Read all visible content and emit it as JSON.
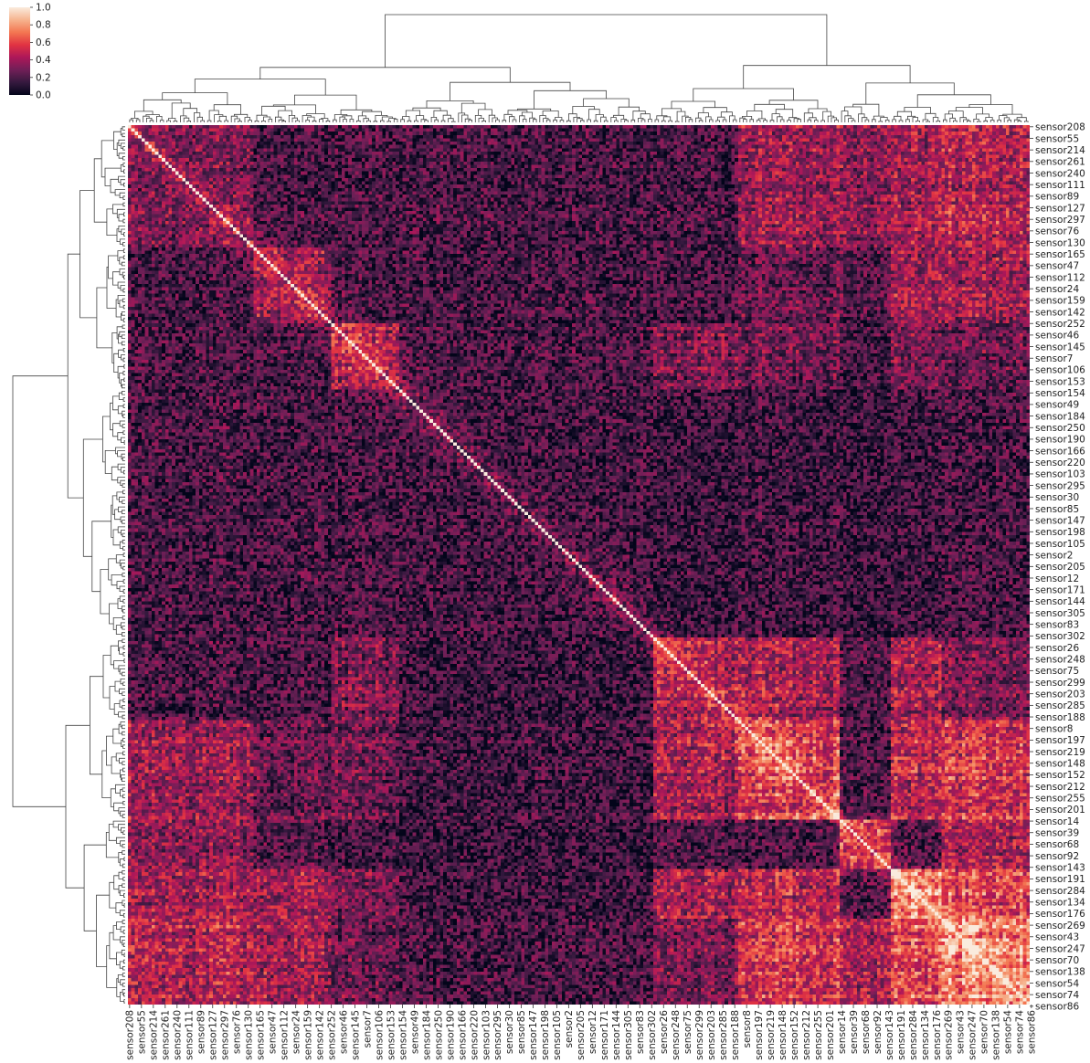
{
  "chart_data": {
    "type": "heatmap",
    "subtype": "clustermap",
    "n_rows": 266,
    "n_cols": 266,
    "row_tick_labels": [
      "sensor208",
      "sensor55",
      "sensor214",
      "sensor261",
      "sensor240",
      "sensor111",
      "sensor89",
      "sensor127",
      "sensor297",
      "sensor76",
      "sensor130",
      "sensor165",
      "sensor47",
      "sensor112",
      "sensor24",
      "sensor159",
      "sensor142",
      "sensor252",
      "sensor46",
      "sensor145",
      "sensor7",
      "sensor106",
      "sensor153",
      "sensor154",
      "sensor49",
      "sensor184",
      "sensor250",
      "sensor190",
      "sensor166",
      "sensor220",
      "sensor103",
      "sensor295",
      "sensor30",
      "sensor85",
      "sensor147",
      "sensor198",
      "sensor105",
      "sensor2",
      "sensor205",
      "sensor12",
      "sensor171",
      "sensor144",
      "sensor305",
      "sensor83",
      "sensor302",
      "sensor26",
      "sensor248",
      "sensor75",
      "sensor299",
      "sensor203",
      "sensor285",
      "sensor188",
      "sensor8",
      "sensor197",
      "sensor219",
      "sensor148",
      "sensor152",
      "sensor212",
      "sensor255",
      "sensor201",
      "sensor14",
      "sensor39",
      "sensor68",
      "sensor92",
      "sensor143",
      "sensor191",
      "sensor284",
      "sensor134",
      "sensor176",
      "sensor269",
      "sensor43",
      "sensor247",
      "sensor70",
      "sensor138",
      "sensor54",
      "sensor74",
      "sensor86"
    ],
    "col_tick_labels": [
      "sensor208",
      "sensor55",
      "sensor214",
      "sensor261",
      "sensor240",
      "sensor111",
      "sensor89",
      "sensor127",
      "sensor297",
      "sensor76",
      "sensor130",
      "sensor165",
      "sensor47",
      "sensor112",
      "sensor24",
      "sensor159",
      "sensor142",
      "sensor252",
      "sensor46",
      "sensor145",
      "sensor7",
      "sensor106",
      "sensor153",
      "sensor154",
      "sensor49",
      "sensor184",
      "sensor250",
      "sensor190",
      "sensor166",
      "sensor220",
      "sensor103",
      "sensor295",
      "sensor30",
      "sensor85",
      "sensor147",
      "sensor198",
      "sensor105",
      "sensor2",
      "sensor205",
      "sensor12",
      "sensor171",
      "sensor144",
      "sensor305",
      "sensor83",
      "sensor302",
      "sensor26",
      "sensor248",
      "sensor75",
      "sensor299",
      "sensor203",
      "sensor285",
      "sensor188",
      "sensor8",
      "sensor197",
      "sensor219",
      "sensor148",
      "sensor152",
      "sensor212",
      "sensor255",
      "sensor201",
      "sensor14",
      "sensor39",
      "sensor68",
      "sensor92",
      "sensor143",
      "sensor191",
      "sensor284",
      "sensor134",
      "sensor176",
      "sensor269",
      "sensor43",
      "sensor247",
      "sensor70",
      "sensor138",
      "sensor54",
      "sensor74",
      "sensor86"
    ],
    "tick_every_n_cells": 3.5,
    "clusters": [
      {
        "range": [
          0,
          37
        ],
        "within": 0.3
      },
      {
        "range": [
          37,
          60
        ],
        "within": 0.38
      },
      {
        "range": [
          60,
          80
        ],
        "within": 0.42
      },
      {
        "range": [
          80,
          155
        ],
        "within": 0.16
      },
      {
        "range": [
          155,
          180
        ],
        "within": 0.42
      },
      {
        "range": [
          180,
          210
        ],
        "within": 0.58
      },
      {
        "range": [
          210,
          225
        ],
        "within": 0.55
      },
      {
        "range": [
          225,
          240
        ],
        "within": 0.78
      },
      {
        "range": [
          240,
          266
        ],
        "within": 0.75
      }
    ],
    "diagonal_value": 1.0,
    "colorbar": {
      "vmin": 0.0,
      "vmax": 1.0,
      "ticks": [
        "0.0",
        "0.2",
        "0.4",
        "0.6",
        "0.8",
        "1.0"
      ],
      "colormap": "rocket",
      "color_stops": [
        "#03051a",
        "#35193e",
        "#701f57",
        "#ad1759",
        "#e13342",
        "#f37651",
        "#f6b48f",
        "#faebdd"
      ]
    },
    "dendrogram_color": "#444444",
    "grid": false
  }
}
